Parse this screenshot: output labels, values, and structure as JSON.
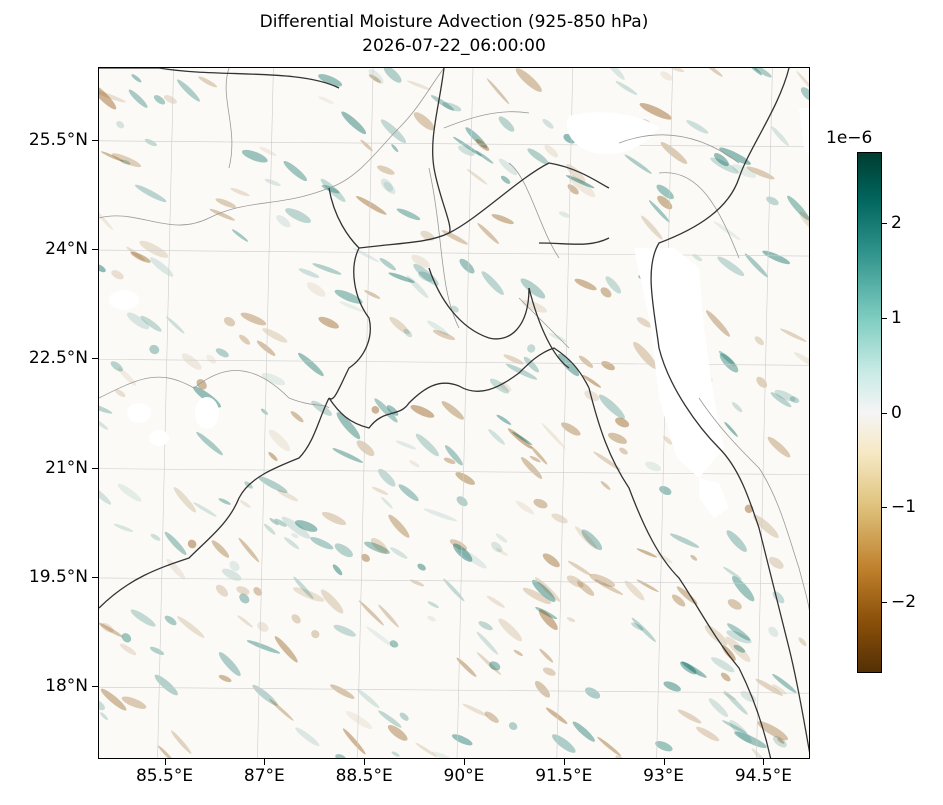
{
  "title": "Differential Moisture Advection (925-850 hPa)",
  "subtitle": "2026-07-22_06:00:00",
  "map": {
    "lat_range": [
      17.0,
      26.5
    ],
    "lon_range": [
      84.5,
      95.2
    ],
    "lat_labels": [
      {
        "value": 25.5,
        "label": "25.5°N"
      },
      {
        "value": 24.0,
        "label": "24°N"
      },
      {
        "value": 22.5,
        "label": "22.5°N"
      },
      {
        "value": 21.0,
        "label": "21°N"
      },
      {
        "value": 19.5,
        "label": "19.5°N"
      },
      {
        "value": 18.0,
        "label": "18°N"
      }
    ],
    "lon_labels": [
      {
        "value": 85.5,
        "label": "85.5°E"
      },
      {
        "value": 87.0,
        "label": "87°E"
      },
      {
        "value": 88.5,
        "label": "88.5°E"
      },
      {
        "value": 90.0,
        "label": "90°E"
      },
      {
        "value": 91.5,
        "label": "91.5°E"
      },
      {
        "value": 93.0,
        "label": "93°E"
      },
      {
        "value": 94.5,
        "label": "94.5°E"
      }
    ],
    "gridlines": true,
    "colormap": "BrBG",
    "colors": {
      "positive": "#01665e",
      "negative": "#8c510a",
      "neutral": "#f5f5f5",
      "coast": "#333333",
      "border": "#999999"
    }
  },
  "colorbar": {
    "exponent_label": "1e−6",
    "range": [
      -2.75,
      2.75
    ],
    "ticks": [
      {
        "value": 2,
        "label": "2"
      },
      {
        "value": 1,
        "label": "1"
      },
      {
        "value": 0,
        "label": "0"
      },
      {
        "value": -1,
        "label": "−1"
      },
      {
        "value": -2,
        "label": "−2"
      }
    ]
  }
}
